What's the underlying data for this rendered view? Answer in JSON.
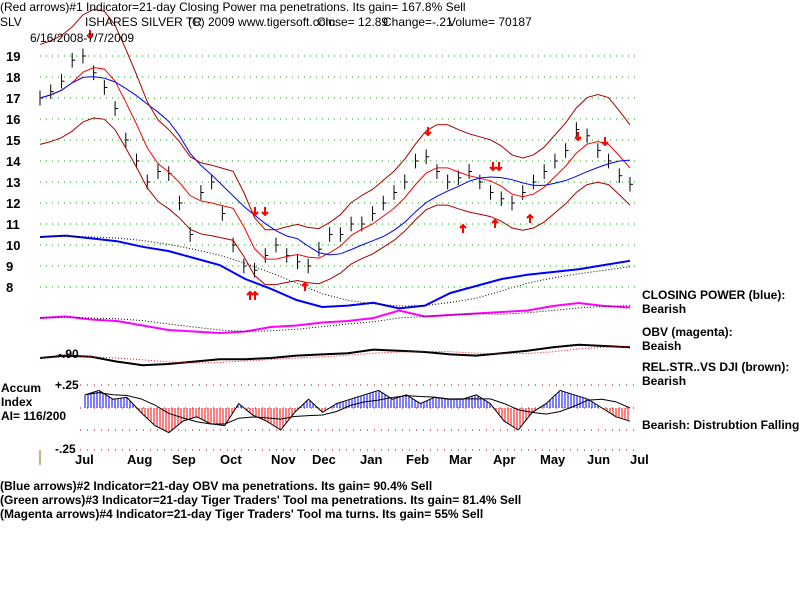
{
  "header": {
    "line1": "(Red arrows)#1 Indicator=21-day Closing Power ma penetrations. Its gain= 167.8% Sell",
    "ticker": "SLV",
    "name": "ISHARES SILVER TR",
    "copyright": "(C) 2009 www.tigersoft.com",
    "close": "Close=  12.89",
    "change": "Change=-.21",
    "volume": "Volume= 70187",
    "range": "6/16/2008-7/7/2009"
  },
  "right_labels": {
    "cp": "CLOSING POWER (blue):",
    "cp_v": "Bearish",
    "obv": "OBV (magenta):",
    "obv_v": "Beaish",
    "rs": "REL.STR..VS DJI (brown):",
    "rs_v": "Bearish",
    "ai_v": "Bearish: Distrubtion Falling."
  },
  "accum": {
    "l1": "Accum",
    "l2": "Index",
    "l3": "AI= 116/200",
    "plus": "+.25",
    "minus": "-.25",
    "rs_tick": "-.90"
  },
  "footer": [
    "(Blue arrows)#2 Indicator=21-day OBV ma penetrations. Its gain= 90.4% Sell",
    "(Green arrows)#3 Indicator=21-day Tiger Traders' Tool ma penetrations. Its gain= 81.4% Sell",
    "(Magenta arrows)#4 Indicator=21-day Tiger Traders' Tool ma turns. Its gain= 55% Sell"
  ],
  "colors": {
    "price": "#000000",
    "ma": "#ff0000",
    "band": "#aa0000",
    "cp": "#0000ff",
    "obv": "#ff00ff",
    "rs": "#000000",
    "ai_pos": "#0000ff",
    "ai_neg": "#ff0000",
    "grid": "#00aa00"
  },
  "chart_data": {
    "type": "line",
    "title": "SLV ISHARES SILVER TR",
    "ylim": [
      8,
      19
    ],
    "yticks": [
      "19",
      "18",
      "17",
      "16",
      "15",
      "14",
      "13",
      "12",
      "11",
      "10",
      "9",
      "8"
    ],
    "xticks": [
      "Jul",
      "Aug",
      "Sep",
      "Oct",
      "Nov",
      "Dec",
      "Jan",
      "Feb",
      "Mar",
      "Apr",
      "May",
      "Jun",
      "Jul"
    ],
    "price": [
      17,
      17.3,
      17.8,
      18.8,
      19,
      18.2,
      17.5,
      16.5,
      15,
      14,
      13,
      13.5,
      13.4,
      12,
      10.5,
      12.5,
      13,
      11.5,
      10,
      9,
      8.8,
      9.5,
      10,
      9.5,
      9.2,
      9,
      9.8,
      10.5,
      10.5,
      11,
      11,
      11.5,
      12,
      12.5,
      13,
      14,
      14.2,
      13.5,
      13,
      13.2,
      13.5,
      13,
      12.5,
      12.2,
      12,
      12.5,
      13,
      13.5,
      14,
      14.5,
      15.5,
      15.2,
      14.5,
      14,
      13.3,
      12.89
    ],
    "cp": [
      10.5,
      10.6,
      10.4,
      10.2,
      9.8,
      9.5,
      9,
      8.5,
      7.5,
      6.8,
      6,
      5.5,
      5.6,
      5.8,
      5.4,
      5.6,
      6.5,
      7,
      7.5,
      7.8,
      8,
      8.2,
      8.5,
      8.8
    ],
    "obv": [
      4.8,
      4.9,
      4.7,
      4.6,
      4.3,
      4,
      3.9,
      3.8,
      3.9,
      4.2,
      4.3,
      4.5,
      4.6,
      4.8,
      5.3,
      4.9,
      5,
      5.1,
      5.2,
      5.3,
      5.6,
      5.8,
      5.6,
      5.5
    ],
    "rs": [
      5,
      5.2,
      5.1,
      4.7,
      4.4,
      4.5,
      4.7,
      4.9,
      4.9,
      5,
      5.2,
      5.3,
      5.4,
      5.7,
      5.6,
      5.5,
      5.3,
      5.2,
      5.4,
      5.6,
      5.9,
      6.1,
      6,
      5.9
    ],
    "ai": [
      0.15,
      0.2,
      0.1,
      0.12,
      -0.05,
      -0.2,
      -0.28,
      -0.15,
      -0.1,
      -0.18,
      -0.2,
      0.05,
      -0.08,
      -0.15,
      -0.25,
      -0.05,
      0.1,
      -0.05,
      0.05,
      0.1,
      0.15,
      0.2,
      0.1,
      0.15,
      0.05,
      0.12,
      0.1,
      0.1,
      0.15,
      0.05,
      -0.15,
      -0.25,
      -0.05,
      0.05,
      0.2,
      0.15,
      0.1,
      0,
      -0.1,
      -0.15
    ]
  }
}
